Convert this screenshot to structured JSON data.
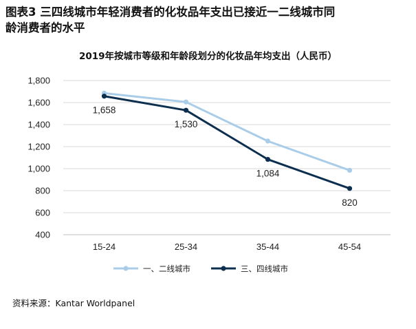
{
  "figure": {
    "title_line1": "图表3  三四线城市年轻消费者的化妆品年支出已接近一二线城市同",
    "title_line2": "龄消费者的水平",
    "source": "资料来源：Kantar Worldpanel"
  },
  "chart_data": {
    "type": "line",
    "title": "2019年按城市等级和年龄段划分的化妆品年均支出（人民币）",
    "categories": [
      "15-24",
      "25-34",
      "35-44",
      "45-54"
    ],
    "ylim": [
      400,
      1800
    ],
    "yticks": [
      "1,800",
      "1,600",
      "1,400",
      "1,200",
      "1,000",
      "800",
      "600",
      "400"
    ],
    "ytick_values": [
      1800,
      1600,
      1400,
      1200,
      1000,
      800,
      600,
      400
    ],
    "grid": true,
    "legend_position": "bottom",
    "series": [
      {
        "name": "一、二线城市",
        "values": [
          1685,
          1605,
          1250,
          985
        ],
        "color": "#a9cde8",
        "labels": []
      },
      {
        "name": "三、四线城市",
        "values": [
          1658,
          1530,
          1084,
          820
        ],
        "color": "#0d2f4f",
        "labels": [
          "1,658",
          "1,530",
          "1,084",
          "820"
        ]
      }
    ]
  }
}
